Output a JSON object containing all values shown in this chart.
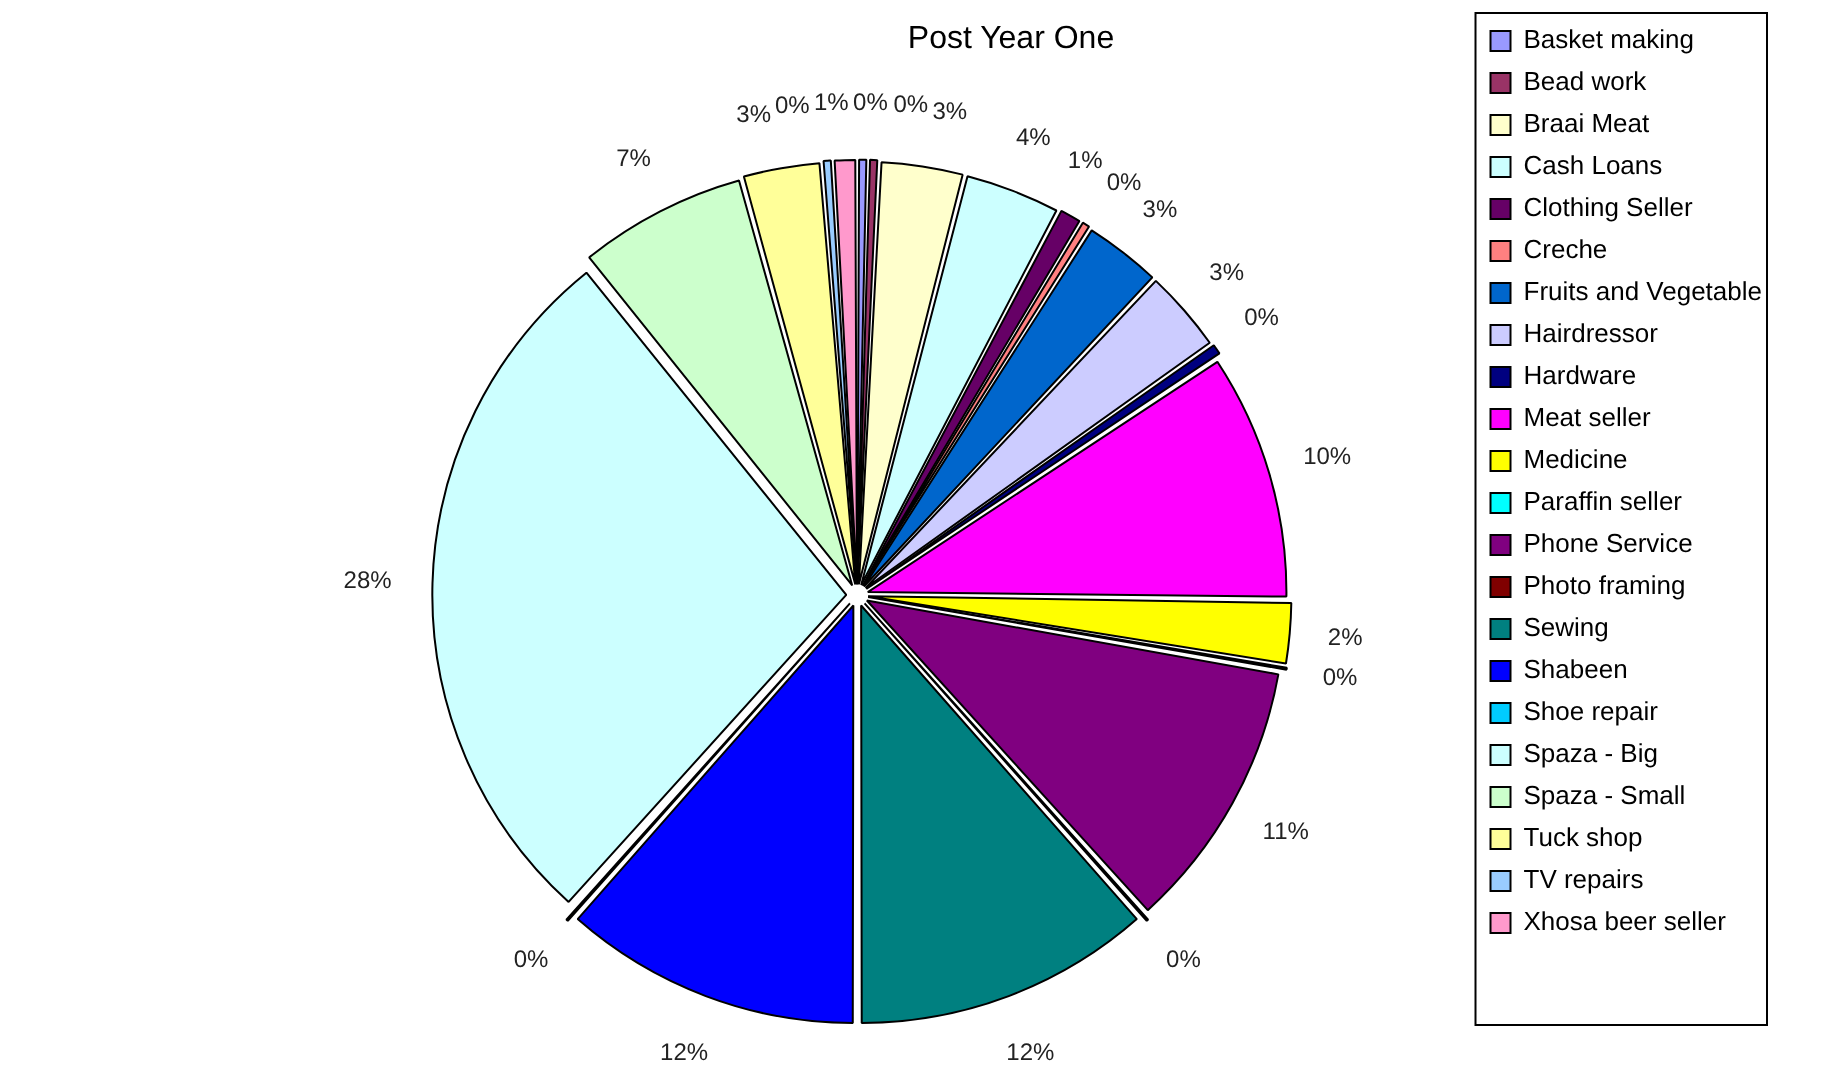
{
  "chart_data": {
    "type": "pie",
    "title": "Post Year One",
    "categories": [
      "Basket making",
      "Bead work",
      "Braai Meat",
      "Cash Loans",
      "Clothing Seller",
      "Creche",
      "Fruits and Vegetable",
      "Hairdressor",
      "Hardware",
      "Meat seller",
      "Medicine",
      "Paraffin seller",
      "Phone Service",
      "Photo framing",
      "Sewing",
      "Shabeen",
      "Shoe repair",
      "Spaza - Big",
      "Spaza - Small",
      "Tuck shop",
      "TV repairs",
      "Xhosa beer seller"
    ],
    "values": [
      0.4,
      0.4,
      3.2,
      3.7,
      0.9,
      0.4,
      3,
      3.2,
      0.5,
      9.5,
      2.4,
      0.2,
      10.5,
      0.2,
      11.5,
      11.5,
      0.2,
      27.5,
      6.5,
      3,
      0.4,
      0.9
    ],
    "value_labels": [
      "0%",
      "0%",
      "3%",
      "4%",
      "1%",
      "0%",
      "3%",
      "3%",
      "0%",
      "10%",
      "2%",
      "0%",
      "11%",
      "0%",
      "12%",
      "12%",
      "0%",
      "28%",
      "7%",
      "3%",
      "0%",
      "1%"
    ],
    "colors": [
      "#9999ff",
      "#993366",
      "#ffffcc",
      "#ccffff",
      "#660066",
      "#ff8080",
      "#0066cc",
      "#ccccff",
      "#000080",
      "#ff00ff",
      "#ffff00",
      "#00ffff",
      "#800080",
      "#800000",
      "#008080",
      "#0000ff",
      "#00ccff",
      "#ccffff",
      "#ccffcc",
      "#ffff99",
      "#99ccff",
      "#ff99cc"
    ],
    "legend": "right"
  }
}
